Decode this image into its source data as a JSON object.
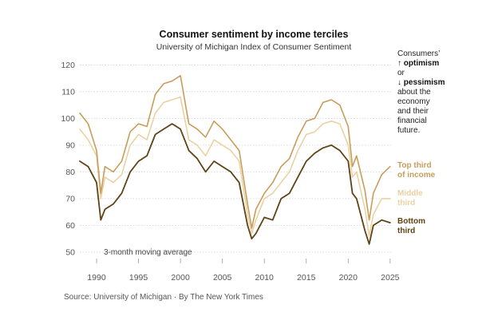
{
  "colors": {
    "top": "#c89d5c",
    "middle": "#ead2a2",
    "bottom": "#5e4315",
    "grid": "#c8c8c8"
  },
  "source_line": "Source: University of Michigan · By The New York Times",
  "annotation": {
    "lines": [
      {
        "text": "Consumers’",
        "bold": false
      },
      {
        "text": "↑ optimism",
        "bold": true
      },
      {
        "text": "or",
        "bold": false
      },
      {
        "text": "↓ pessimism",
        "bold": true
      },
      {
        "text": "about the",
        "bold": false
      },
      {
        "text": "economy",
        "bold": false
      },
      {
        "text": "and their",
        "bold": false
      },
      {
        "text": "financial",
        "bold": false
      },
      {
        "text": "future.",
        "bold": false
      }
    ]
  },
  "chart_data": {
    "type": "line",
    "title": "Consumer sentiment by income terciles",
    "subtitle": "University of Michigan Index of Consumer Sentiment",
    "note": "3-month moving average",
    "xlim": [
      1988,
      2025.3
    ],
    "ylim": [
      47,
      124
    ],
    "x_ticks": [
      "1990",
      "1995",
      "2000",
      "2005",
      "2010",
      "2015",
      "2020",
      "2025"
    ],
    "y_ticks": [
      "50",
      "60",
      "70",
      "80",
      "90",
      "100",
      "110",
      "120"
    ],
    "grid": true,
    "legend_placement": "right, inline labels",
    "x": [
      1988,
      1989,
      1990,
      1990.5,
      1991,
      1992,
      1993,
      1994,
      1995,
      1996,
      1997,
      1998,
      1999,
      2000,
      2001,
      2002,
      2003,
      2004,
      2005,
      2006,
      2007,
      2008,
      2008.5,
      2009,
      2010,
      2011,
      2012,
      2013,
      2014,
      2015,
      2016,
      2017,
      2018,
      2019,
      2020,
      2020.5,
      2021,
      2022,
      2022.5,
      2023,
      2024,
      2025
    ],
    "series": [
      {
        "name": "Top third of income",
        "label_lines": [
          "Top third",
          "of income"
        ],
        "key": "top",
        "values": [
          102,
          98,
          88,
          72,
          82,
          80,
          84,
          95,
          98,
          97,
          109,
          113,
          114,
          116,
          98,
          96,
          93,
          99,
          96,
          92,
          88,
          68,
          59,
          66,
          72,
          76,
          82,
          85,
          93,
          99,
          100,
          106,
          107,
          105,
          97,
          82,
          86,
          73,
          62,
          72,
          79,
          82
        ]
      },
      {
        "name": "Middle third",
        "label_lines": [
          "Middle",
          "third"
        ],
        "key": "middle",
        "values": [
          96,
          92,
          86,
          70,
          78,
          76,
          79,
          90,
          94,
          92,
          102,
          106,
          107,
          108,
          92,
          90,
          86,
          92,
          90,
          88,
          84,
          64,
          57,
          62,
          70,
          72,
          76,
          80,
          88,
          94,
          95,
          98,
          99,
          98,
          90,
          78,
          80,
          66,
          56,
          64,
          70,
          70
        ]
      },
      {
        "name": "Bottom third",
        "label_lines": [
          "Bottom",
          "third"
        ],
        "key": "bottom",
        "values": [
          84,
          82,
          76,
          62,
          66,
          68,
          72,
          80,
          84,
          86,
          94,
          96,
          98,
          96,
          88,
          85,
          80,
          84,
          82,
          80,
          76,
          60,
          55,
          57,
          63,
          62,
          70,
          72,
          78,
          84,
          87,
          89,
          90,
          88,
          84,
          72,
          70,
          58,
          53,
          60,
          62,
          61
        ]
      }
    ]
  }
}
